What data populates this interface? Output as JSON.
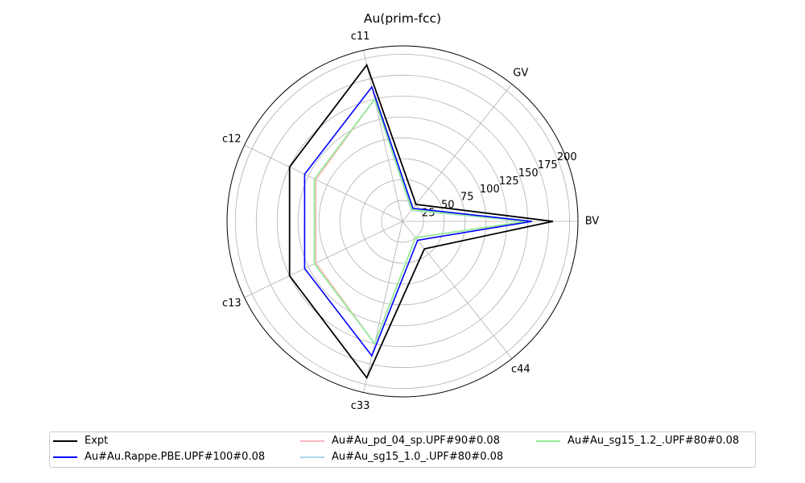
{
  "chart_data": {
    "type": "radar",
    "title": "Au(prim-fcc)",
    "axes": [
      "BV",
      "GV",
      "c11",
      "c12",
      "c13",
      "c33",
      "c44"
    ],
    "rlim": [
      0,
      210
    ],
    "radial_ticks": [
      25,
      50,
      75,
      100,
      125,
      150,
      175,
      200
    ],
    "grid": true,
    "legend_position": "bottom-center",
    "series": [
      {
        "name": "Expt",
        "color": "#000000",
        "values": [
          180,
          26,
          192,
          150,
          150,
          192,
          42
        ]
      },
      {
        "name": "Au#Au.Rappe.PBE.UPF#100#0.08",
        "color": "#0000ff",
        "values": [
          155,
          20,
          165,
          130,
          130,
          165,
          29
        ]
      },
      {
        "name": "Au#Au_pd_04_sp.UPF#90#0.08",
        "color": "#ffb6c1",
        "values": [
          150,
          17,
          150,
          115,
          115,
          150,
          25
        ]
      },
      {
        "name": "Au#Au_sg15_1.0_.UPF#80#0.08",
        "color": "#add8e6",
        "values": [
          148,
          17,
          150,
          117,
          117,
          150,
          25
        ]
      },
      {
        "name": "Au#Au_sg15_1.2_.UPF#80#0.08",
        "color": "#90ee90",
        "values": [
          148,
          18,
          150,
          117,
          117,
          150,
          25
        ]
      }
    ]
  }
}
